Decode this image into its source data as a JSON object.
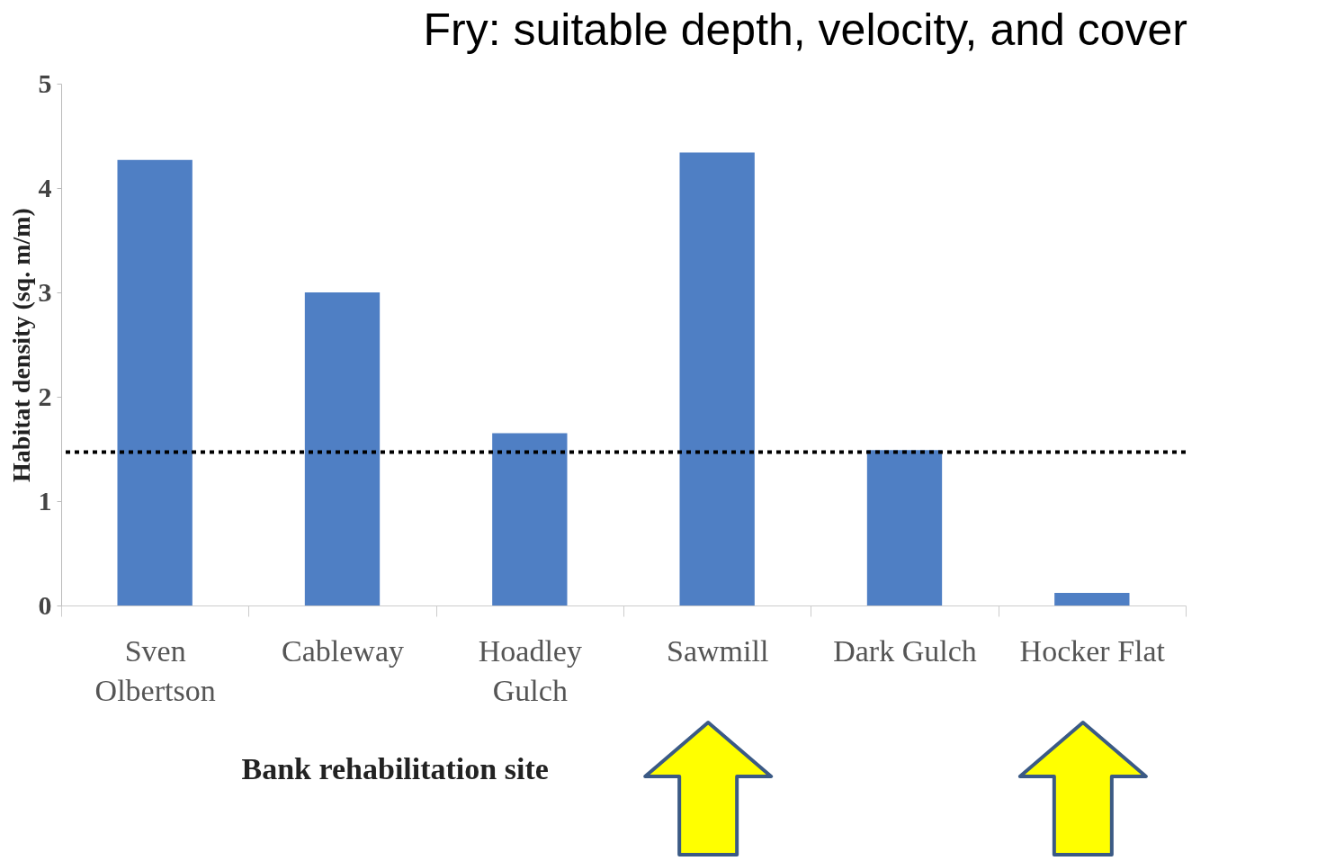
{
  "chart_data": {
    "type": "bar",
    "title": "Fry: suitable depth, velocity, and cover",
    "xlabel": "Bank rehabilitation site",
    "ylabel": "Habitat density (sq. m/m)",
    "categories": [
      "Sven Olbertson",
      "Cableway",
      "Hoadley Gulch",
      "Sawmill",
      "Dark Gulch",
      "Hocker Flat"
    ],
    "values": [
      4.27,
      3.0,
      1.65,
      4.34,
      1.49,
      0.12
    ],
    "color": "#4f7fc4",
    "ylim": [
      0,
      5
    ],
    "yticks": [
      0,
      1,
      2,
      3,
      4,
      5
    ],
    "grid": false,
    "ref_lines": [
      {
        "axis": "y",
        "value": 1.47,
        "color": "#000000",
        "line_style": "dotted"
      }
    ]
  }
}
